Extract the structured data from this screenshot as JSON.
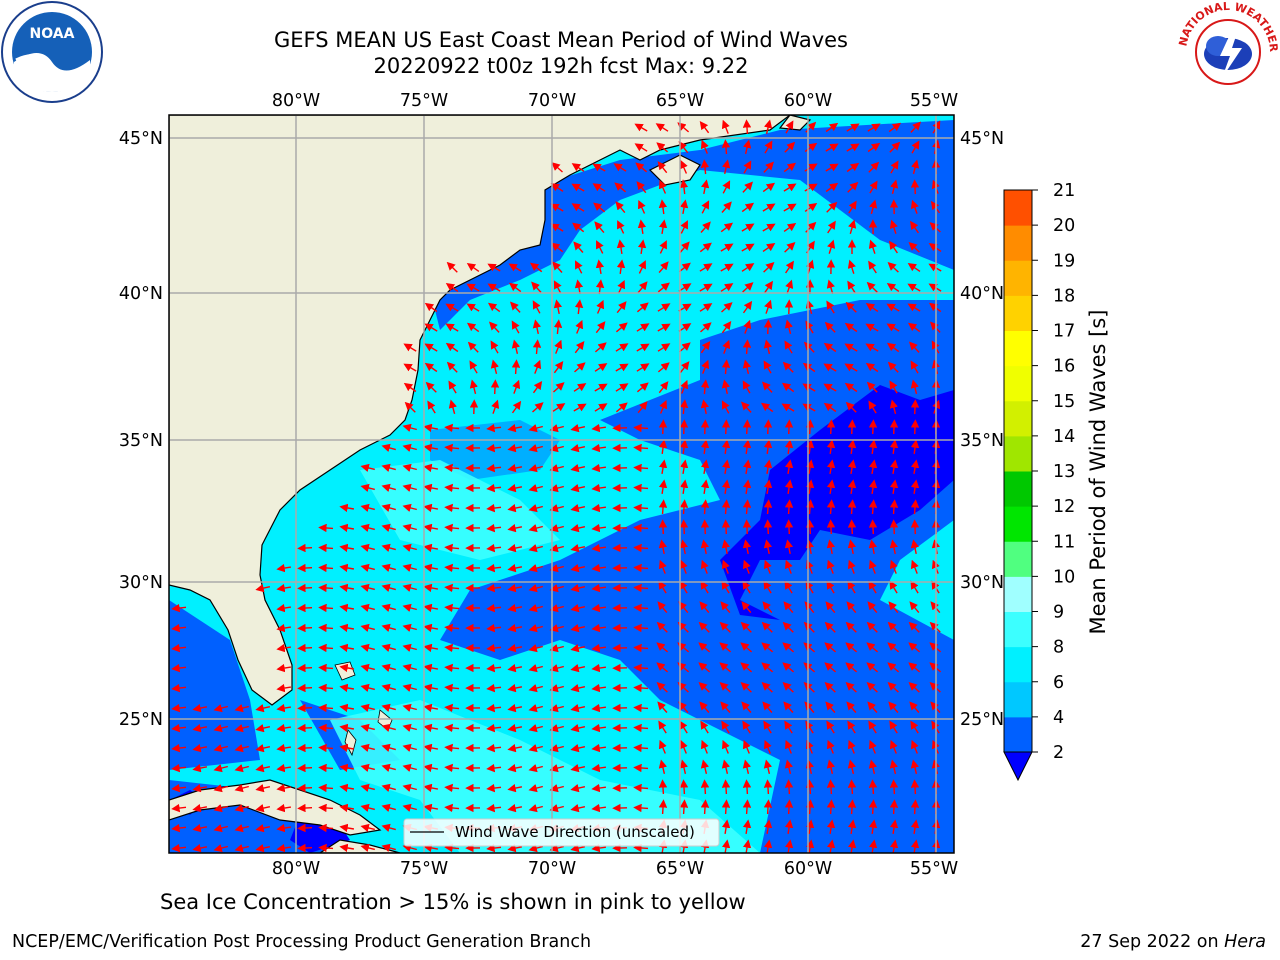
{
  "title": {
    "line1": "GEFS MEAN US East Coast Mean Period of Wind Waves",
    "line2": "20220922 t00z 192h fcst   Max: 9.22"
  },
  "map": {
    "lon_labels": [
      "80°W",
      "75°W",
      "70°W",
      "65°W",
      "60°W",
      "55°W"
    ],
    "lat_labels": [
      "45°N",
      "40°N",
      "35°N",
      "30°N",
      "25°N"
    ],
    "legend_label": "Wind Wave Direction (unscaled)"
  },
  "colorbar": {
    "label": "Mean Period of Wind Waves [s]",
    "ticks": [
      "2",
      "4",
      "6",
      "8",
      "9",
      "10",
      "11",
      "12",
      "13",
      "14",
      "15",
      "16",
      "17",
      "18",
      "19",
      "20",
      "21"
    ],
    "colors": [
      "#0060ff",
      "#00c8ff",
      "#00f0ff",
      "#3cffff",
      "#a0ffff",
      "#50ff80",
      "#00e600",
      "#00c800",
      "#a0e600",
      "#d2f000",
      "#f0ff00",
      "#ffff00",
      "#ffd200",
      "#ffb400",
      "#ff8c00",
      "#ff5000",
      "#ff2800",
      "#ff0000"
    ],
    "under_color": "#0000ff"
  },
  "logos": {
    "noaa": "NOAA",
    "nws": "NATIONAL WEATHER SERVICE"
  },
  "note": "Sea Ice Concentration > 15% is shown in pink to yellow",
  "footer": {
    "left": "NCEP/EMC/Verification Post Processing Product Generation Branch",
    "right_date": "27 Sep 2022 on ",
    "right_machine": "Hera"
  }
}
